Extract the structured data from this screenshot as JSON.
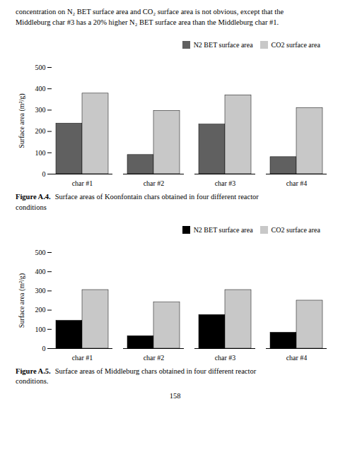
{
  "chart_data": [
    {
      "type": "bar",
      "categories": [
        "char #1",
        "char #2",
        "char #3",
        "char #4"
      ],
      "series": [
        {
          "name": "N2 BET surface area",
          "color": "#606060",
          "values": [
            237,
            90,
            233,
            80
          ]
        },
        {
          "name": "CO2 surface area",
          "color": "#c8c8c8",
          "values": [
            378,
            297,
            370,
            310
          ]
        }
      ],
      "ylabel": "Surface area (m²/g)",
      "ylim": [
        0,
        500
      ],
      "yticks": [
        0,
        100,
        200,
        300,
        400,
        500
      ],
      "legend": "upper right",
      "grid": false,
      "caption_label": "Figure A.4.",
      "caption": "Surface areas of Koonfontain chars obtained in four different reactor\nconditions"
    },
    {
      "type": "bar",
      "categories": [
        "char #1",
        "char #2",
        "char #3",
        "char #4"
      ],
      "series": [
        {
          "name": "N2 BET surface area",
          "color": "#000000",
          "values": [
            145,
            65,
            175,
            83
          ]
        },
        {
          "name": "CO2 surface area",
          "color": "#c8c8c8",
          "values": [
            305,
            240,
            305,
            250
          ]
        }
      ],
      "ylabel": "Surface area (m²/g)",
      "ylim": [
        0,
        500
      ],
      "yticks": [
        0,
        100,
        200,
        300,
        400,
        500
      ],
      "legend": "upper right",
      "grid": false,
      "caption_label": "Figure A.5.",
      "caption": "Surface areas of Middleburg chars obtained in four different reactor\nconditions."
    }
  ],
  "annotations": [
    "concentration on N₂ BET surface area and CO₂ surface area is not obvious, except that the",
    "Middleburg char #3 has a 20% higher N₂ BET surface area than the Middleburg char #1."
  ],
  "page_number": "158"
}
